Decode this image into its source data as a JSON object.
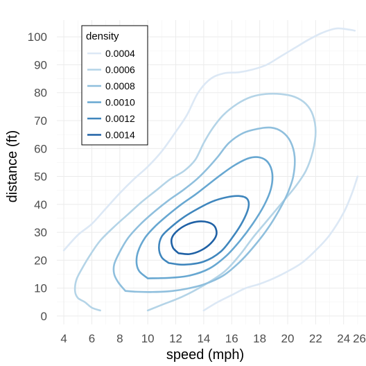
{
  "chart_data": {
    "type": "line",
    "subtype": "2d-density-contour",
    "xlabel": "speed (mph)",
    "ylabel": "distance (ft)",
    "xlim": [
      3.5,
      25.6
    ],
    "ylim": [
      -3,
      106
    ],
    "x_ticks": [
      4,
      6,
      8,
      10,
      12,
      14,
      16,
      18,
      20,
      22,
      24,
      26
    ],
    "y_ticks": [
      0,
      10,
      20,
      30,
      40,
      50,
      60,
      70,
      80,
      90,
      100
    ],
    "grid": true,
    "legend": {
      "title": "density",
      "placement": "top-left",
      "entries": [
        "0.0004",
        "0.0006",
        "0.0008",
        "0.0010",
        "0.0012",
        "0.0014"
      ]
    },
    "series": [
      {
        "level": 0.0004,
        "color": "#dce8f5",
        "paths": [
          [
            [
              4.0,
              23.5
            ],
            [
              5.0,
              29
            ],
            [
              6.0,
              33
            ],
            [
              7.0,
              38.5
            ],
            [
              8.0,
              44
            ],
            [
              9.0,
              49
            ],
            [
              10.0,
              53.5
            ],
            [
              11.0,
              59
            ],
            [
              12.0,
              66
            ],
            [
              12.8,
              72
            ],
            [
              13.6,
              80
            ],
            [
              14.5,
              85
            ],
            [
              15.5,
              87
            ],
            [
              16.5,
              87.3
            ],
            [
              17.5,
              88.3
            ],
            [
              18.5,
              90
            ],
            [
              19.5,
              93
            ],
            [
              20.5,
              96
            ],
            [
              21.5,
              99
            ],
            [
              22.5,
              101.5
            ],
            [
              23.5,
              103
            ],
            [
              24.5,
              102.5
            ],
            [
              24.8,
              102.2
            ]
          ],
          [
            [
              14.0,
              2
            ],
            [
              15.0,
              5
            ],
            [
              16.0,
              7.5
            ],
            [
              17.0,
              10
            ],
            [
              18.0,
              11.5
            ],
            [
              19.0,
              13.5
            ],
            [
              20.0,
              16
            ],
            [
              21.0,
              19
            ],
            [
              22.0,
              23.5
            ],
            [
              23.0,
              29
            ],
            [
              24.0,
              37
            ],
            [
              24.6,
              44
            ],
            [
              25.0,
              50
            ]
          ]
        ]
      },
      {
        "level": 0.0006,
        "color": "#b4d4e7",
        "paths": [
          [
            [
              6.6,
              2
            ],
            [
              6.0,
              3
            ],
            [
              5.5,
              5
            ],
            [
              5.0,
              6.5
            ],
            [
              4.8,
              9
            ],
            [
              4.9,
              13
            ],
            [
              5.3,
              17
            ],
            [
              5.9,
              22
            ],
            [
              6.6,
              27
            ],
            [
              7.6,
              32
            ],
            [
              8.6,
              36.5
            ],
            [
              9.6,
              41
            ],
            [
              10.6,
              45
            ],
            [
              11.6,
              49
            ],
            [
              12.6,
              52
            ],
            [
              13.4,
              56
            ],
            [
              14.0,
              62
            ],
            [
              14.6,
              67
            ],
            [
              15.4,
              72
            ],
            [
              16.4,
              76
            ],
            [
              17.4,
              78.5
            ],
            [
              18.4,
              79.5
            ],
            [
              19.5,
              79.5
            ],
            [
              20.5,
              78.5
            ],
            [
              21.3,
              76
            ],
            [
              21.8,
              72
            ],
            [
              22.0,
              66
            ],
            [
              21.8,
              59
            ],
            [
              21.3,
              52
            ],
            [
              20.5,
              46
            ],
            [
              19.5,
              40
            ],
            [
              18.5,
              34
            ],
            [
              17.5,
              28
            ],
            [
              16.6,
              22
            ],
            [
              15.5,
              16
            ],
            [
              14.0,
              11
            ],
            [
              12.5,
              7
            ],
            [
              11.0,
              4
            ],
            [
              10.0,
              2
            ]
          ]
        ]
      },
      {
        "level": 0.0008,
        "color": "#8fbfdd",
        "paths": [
          [
            [
              8.4,
              9
            ],
            [
              7.9,
              12
            ],
            [
              7.6,
              15
            ],
            [
              7.6,
              18.5
            ],
            [
              8.0,
              23
            ],
            [
              8.6,
              28
            ],
            [
              9.5,
              33
            ],
            [
              10.5,
              37.5
            ],
            [
              11.5,
              41.5
            ],
            [
              12.5,
              45
            ],
            [
              13.5,
              49
            ],
            [
              14.3,
              53
            ],
            [
              15.0,
              57
            ],
            [
              15.8,
              62
            ],
            [
              16.8,
              65.5
            ],
            [
              17.8,
              67
            ],
            [
              18.8,
              67.5
            ],
            [
              19.6,
              66
            ],
            [
              20.2,
              62.5
            ],
            [
              20.5,
              57
            ],
            [
              20.4,
              50
            ],
            [
              20.0,
              44
            ],
            [
              19.4,
              38
            ],
            [
              18.6,
              31.5
            ],
            [
              17.6,
              25
            ],
            [
              16.6,
              19.5
            ],
            [
              15.4,
              14.5
            ],
            [
              14.0,
              11.3
            ],
            [
              12.7,
              9.7
            ],
            [
              11.4,
              8.8
            ],
            [
              10.2,
              8.6
            ],
            [
              9.2,
              8.7
            ],
            [
              8.4,
              9
            ]
          ]
        ]
      },
      {
        "level": 0.001,
        "color": "#67a7d1",
        "paths": [
          [
            [
              10.0,
              13.5
            ],
            [
              9.4,
              16
            ],
            [
              9.2,
              19
            ],
            [
              9.3,
              23
            ],
            [
              9.8,
              28
            ],
            [
              10.5,
              32
            ],
            [
              11.4,
              36
            ],
            [
              12.4,
              40
            ],
            [
              13.4,
              43.5
            ],
            [
              14.3,
              47
            ],
            [
              15.2,
              50.5
            ],
            [
              16.2,
              54
            ],
            [
              17.2,
              56.5
            ],
            [
              18.0,
              56.8
            ],
            [
              18.6,
              55
            ],
            [
              18.9,
              51
            ],
            [
              18.8,
              45.5
            ],
            [
              18.3,
              39.5
            ],
            [
              17.5,
              33
            ],
            [
              16.6,
              27
            ],
            [
              15.6,
              21.5
            ],
            [
              14.4,
              17
            ],
            [
              13.0,
              14.5
            ],
            [
              11.6,
              13.7
            ],
            [
              10.0,
              13.5
            ]
          ]
        ]
      },
      {
        "level": 0.0012,
        "color": "#3f86bd",
        "paths": [
          [
            [
              11.5,
              19
            ],
            [
              11.0,
              21
            ],
            [
              10.8,
              24.5
            ],
            [
              11.0,
              28.5
            ],
            [
              11.7,
              32
            ],
            [
              12.6,
              35.5
            ],
            [
              13.6,
              38.5
            ],
            [
              14.6,
              41
            ],
            [
              15.6,
              42.5
            ],
            [
              16.5,
              43
            ],
            [
              17.1,
              42
            ],
            [
              17.2,
              39
            ],
            [
              16.8,
              34
            ],
            [
              16.1,
              28.5
            ],
            [
              15.2,
              23
            ],
            [
              14.0,
              19.5
            ],
            [
              12.6,
              18.4
            ],
            [
              11.5,
              19
            ]
          ]
        ]
      },
      {
        "level": 0.0014,
        "color": "#1f61a5",
        "paths": [
          [
            [
              12.2,
              22.5
            ],
            [
              11.8,
              24.5
            ],
            [
              11.7,
              27.5
            ],
            [
              12.0,
              30
            ],
            [
              12.7,
              32.5
            ],
            [
              13.5,
              33.8
            ],
            [
              14.3,
              33.6
            ],
            [
              14.8,
              32
            ],
            [
              14.9,
              29
            ],
            [
              14.5,
              26
            ],
            [
              13.8,
              23.5
            ],
            [
              13.0,
              22.2
            ],
            [
              12.2,
              22.5
            ]
          ]
        ]
      }
    ]
  }
}
